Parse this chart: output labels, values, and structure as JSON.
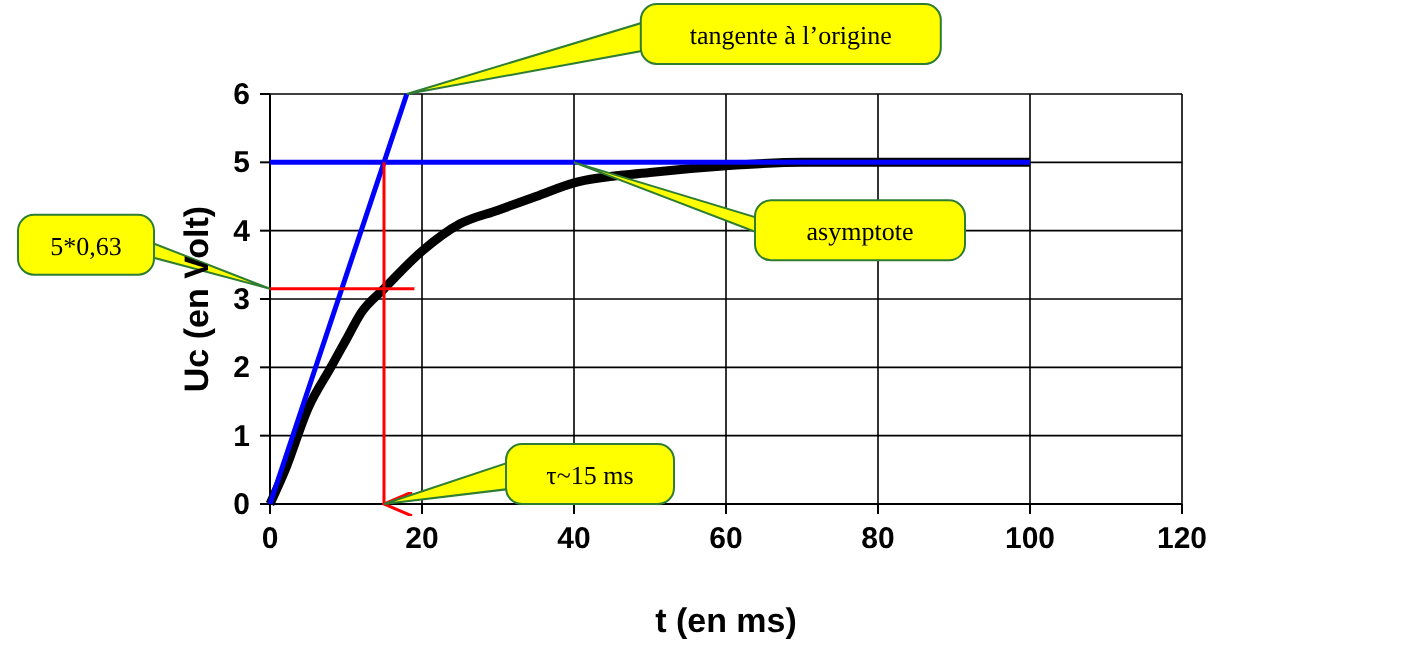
{
  "chart_data": {
    "type": "line",
    "xlabel": "t (en ms)",
    "ylabel": "Uc (en Volt)",
    "xlim": [
      0,
      120
    ],
    "xticks": [
      0,
      20,
      40,
      60,
      80,
      100,
      120
    ],
    "ylim": [
      0,
      6
    ],
    "yticks": [
      0,
      1,
      2,
      3,
      4,
      5,
      6
    ],
    "grid": true,
    "marker": "none",
    "line_style": "solid",
    "series": [
      {
        "color": "#000000",
        "x": [
          0,
          2,
          5,
          8,
          10,
          12,
          15,
          20,
          25,
          30,
          35,
          40,
          50,
          60,
          70,
          80,
          90,
          100
        ],
        "values": [
          0,
          0.5,
          1.4,
          2.0,
          2.4,
          2.8,
          3.15,
          3.7,
          4.1,
          4.3,
          4.5,
          4.7,
          4.85,
          4.95,
          5.0,
          5.0,
          5.0,
          5.0
        ]
      },
      {
        "color": "#0000ff",
        "x": [
          0,
          18
        ],
        "values": [
          0,
          6
        ]
      },
      {
        "color": "#0000ff",
        "x": [
          0,
          100
        ],
        "values": [
          5,
          5
        ]
      },
      {
        "color": "#ff0000",
        "x": [
          0,
          19
        ],
        "values": [
          3.15,
          3.15
        ]
      },
      {
        "color": "#ff0000",
        "x": [
          15,
          15
        ],
        "values": [
          5,
          0
        ]
      }
    ],
    "annotations": [
      {
        "text": "tangente à l’origine",
        "x": 18,
        "y": 6
      },
      {
        "text": "asymptote",
        "x": 40,
        "y": 5
      },
      {
        "text": "5*0,63",
        "x": 0,
        "y": 3.15
      },
      {
        "text": "τ~15 ms",
        "x": 15,
        "y": 0
      }
    ]
  }
}
